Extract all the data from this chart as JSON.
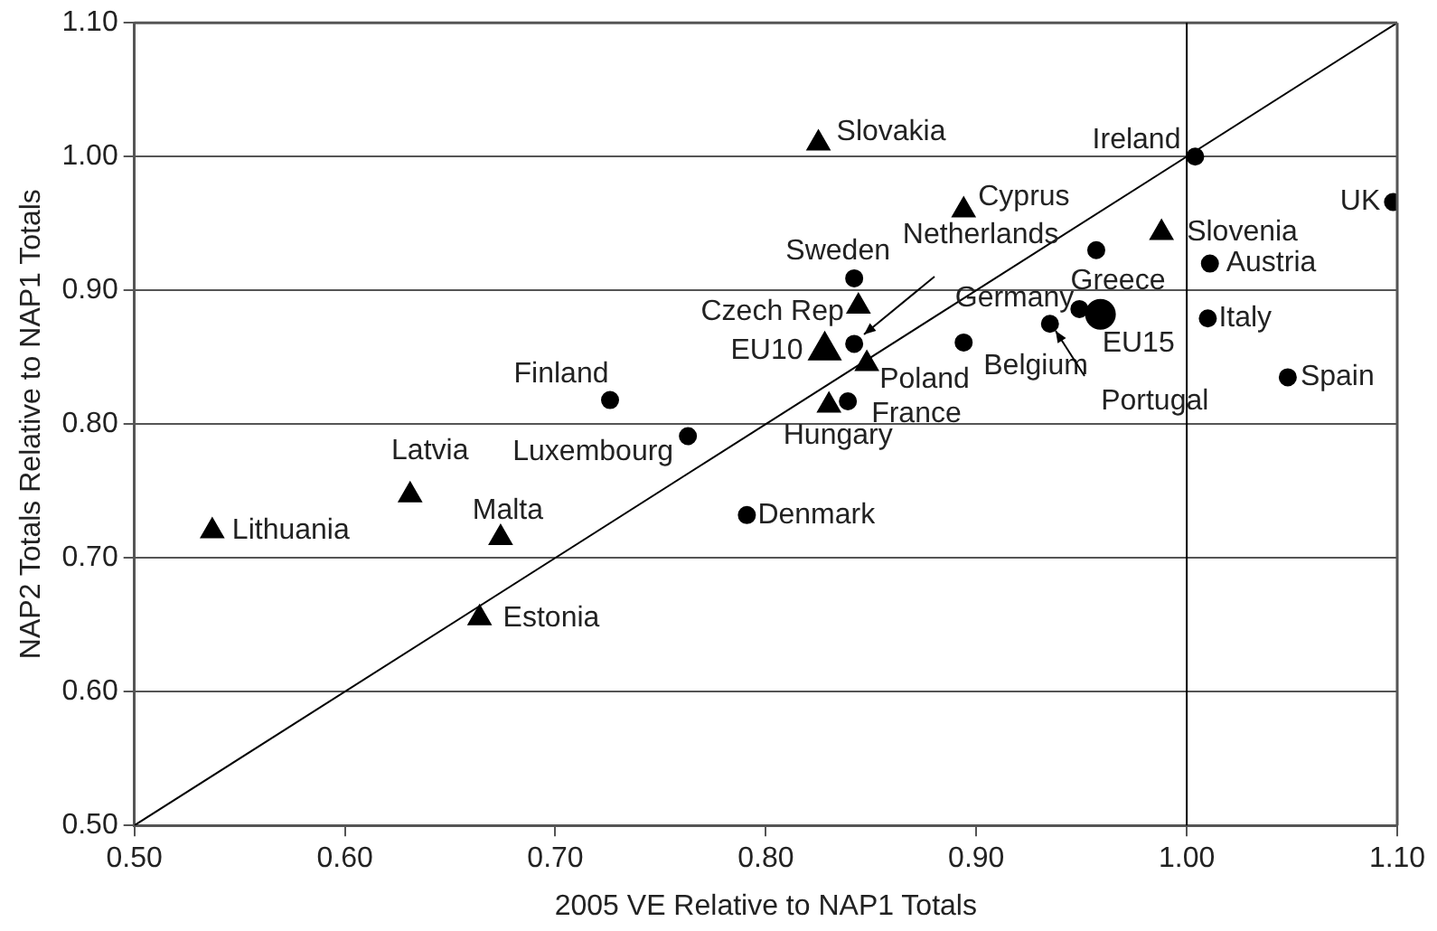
{
  "chart_data": {
    "type": "scatter",
    "xlabel": "2005 VE Relative to NAP1 Totals",
    "ylabel": "NAP2 Totals Relative to NAP1 Totals",
    "xlim": [
      0.5,
      1.1
    ],
    "xticks": [
      {
        "value": 0.5,
        "label": "0.50"
      },
      {
        "value": 0.6,
        "label": "0.60"
      },
      {
        "value": 0.7,
        "label": "0.70"
      },
      {
        "value": 0.8,
        "label": "0.80"
      },
      {
        "value": 0.9,
        "label": "0.90"
      },
      {
        "value": 1.0,
        "label": "1.00"
      },
      {
        "value": 1.1,
        "label": "1.10"
      }
    ],
    "ylim": [
      0.5,
      1.1
    ],
    "yticks": [
      {
        "value": 0.5,
        "label": "0.50"
      },
      {
        "value": 0.6,
        "label": "0.60"
      },
      {
        "value": 0.7,
        "label": "0.70"
      },
      {
        "value": 0.8,
        "label": "0.80"
      },
      {
        "value": 0.9,
        "label": "0.90"
      },
      {
        "value": 1.0,
        "label": "1.00"
      },
      {
        "value": 1.1,
        "label": "1.10"
      }
    ],
    "grid": "y",
    "legend": false,
    "series": [
      {
        "type": "scatter",
        "marker": "circle",
        "color": "#000000",
        "x": [
          1.004,
          1.098,
          0.957,
          1.011,
          0.842,
          0.949,
          1.01,
          0.935,
          0.842,
          0.894,
          1.048,
          0.839,
          0.726,
          0.763,
          0.791
        ],
        "values": [
          1.0,
          0.966,
          0.93,
          0.92,
          0.909,
          0.886,
          0.879,
          0.875,
          0.86,
          0.861,
          0.835,
          0.817,
          0.818,
          0.791,
          0.732
        ]
      },
      {
        "type": "scatter",
        "marker": "triangle",
        "color": "#000000",
        "x": [
          0.825,
          0.894,
          0.988,
          0.844,
          0.848,
          0.83,
          0.537,
          0.631,
          0.674,
          0.664
        ],
        "values": [
          1.01,
          0.96,
          0.943,
          0.888,
          0.845,
          0.814,
          0.72,
          0.747,
          0.715,
          0.655
        ]
      },
      {
        "type": "scatter",
        "marker": "circle",
        "color": "#000000",
        "x": [
          0.959
        ],
        "values": [
          0.882
        ]
      },
      {
        "type": "scatter",
        "marker": "triangle",
        "color": "#000000",
        "x": [
          0.828
        ],
        "values": [
          0.855
        ]
      },
      {
        "type": "line",
        "marker": "none",
        "color": "#000000",
        "x": [
          0.5,
          1.1
        ],
        "values": [
          0.5,
          1.1
        ]
      }
    ],
    "ref_lines": [
      {
        "axis": "x",
        "value": 1.0,
        "color": "#000000"
      }
    ],
    "annotations": [
      {
        "text": "Ireland",
        "x": 1.004,
        "y": 1.0
      },
      {
        "text": "UK",
        "x": 1.098,
        "y": 0.966
      },
      {
        "text": "Greece",
        "x": 0.957,
        "y": 0.93
      },
      {
        "text": "Austria",
        "x": 1.011,
        "y": 0.92
      },
      {
        "text": "Sweden",
        "x": 0.842,
        "y": 0.909
      },
      {
        "text": "Germany",
        "x": 0.949,
        "y": 0.886
      },
      {
        "text": "Italy",
        "x": 1.01,
        "y": 0.879
      },
      {
        "text": "Portugal",
        "x": 0.935,
        "y": 0.875
      },
      {
        "text": "Netherlands",
        "x": 0.842,
        "y": 0.86
      },
      {
        "text": "Belgium",
        "x": 0.894,
        "y": 0.861
      },
      {
        "text": "Spain",
        "x": 1.048,
        "y": 0.835
      },
      {
        "text": "France",
        "x": 0.839,
        "y": 0.817
      },
      {
        "text": "Finland",
        "x": 0.726,
        "y": 0.818
      },
      {
        "text": "Luxembourg",
        "x": 0.763,
        "y": 0.791
      },
      {
        "text": "Denmark",
        "x": 0.791,
        "y": 0.732
      },
      {
        "text": "Slovakia",
        "x": 0.825,
        "y": 1.01
      },
      {
        "text": "Cyprus",
        "x": 0.894,
        "y": 0.96
      },
      {
        "text": "Slovenia",
        "x": 0.988,
        "y": 0.943
      },
      {
        "text": "Czech Rep",
        "x": 0.844,
        "y": 0.888
      },
      {
        "text": "Poland",
        "x": 0.848,
        "y": 0.845
      },
      {
        "text": "Hungary",
        "x": 0.83,
        "y": 0.814
      },
      {
        "text": "Lithuania",
        "x": 0.537,
        "y": 0.72
      },
      {
        "text": "Latvia",
        "x": 0.631,
        "y": 0.747
      },
      {
        "text": "Malta",
        "x": 0.674,
        "y": 0.715
      },
      {
        "text": "Estonia",
        "x": 0.664,
        "y": 0.655
      },
      {
        "text": "EU15",
        "x": 0.959,
        "y": 0.882
      },
      {
        "text": "EU10",
        "x": 0.828,
        "y": 0.855
      }
    ]
  }
}
